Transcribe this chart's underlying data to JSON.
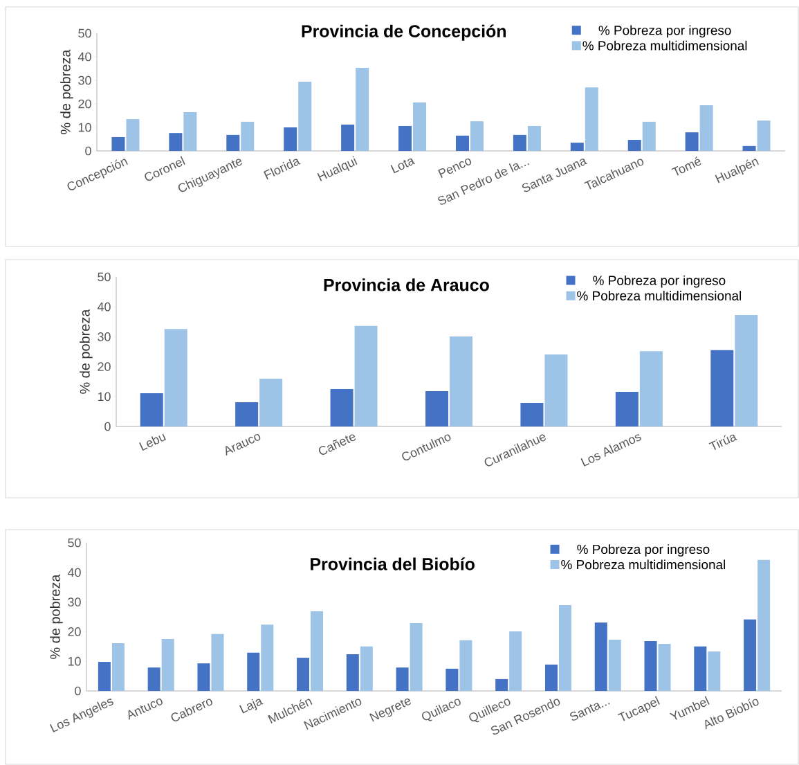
{
  "chart_data": [
    {
      "type": "bar",
      "title": "Provincia de Concepción",
      "ylabel": "% de pobreza",
      "ylim": [
        0,
        50
      ],
      "yticks": [
        0,
        10,
        20,
        30,
        40,
        50
      ],
      "legend": "top right",
      "grid": false,
      "categories": [
        "Concepción",
        "Coronel",
        "Chiguayante",
        "Florida",
        "Hualqui",
        "Lota",
        "Penco",
        "San Pedro de la...",
        "Santa Juana",
        "Talcahuano",
        "Tomé",
        "Hualpén"
      ],
      "series": [
        {
          "name": "% Pobreza por ingreso",
          "color": "#4472c4",
          "values": [
            5.9,
            7.6,
            6.8,
            10,
            11.2,
            10.6,
            6.5,
            6.8,
            3.5,
            4.7,
            7.9,
            2.1
          ]
        },
        {
          "name": "% Pobreza multidimensional",
          "color": "#9dc3e6",
          "values": [
            13.5,
            16.5,
            12.4,
            29.4,
            35.3,
            20.6,
            12.6,
            10.6,
            27,
            12.4,
            19.4,
            12.9
          ]
        }
      ]
    },
    {
      "type": "bar",
      "title": "Provincia de Arauco",
      "ylabel": "% de pobreza",
      "ylim": [
        0,
        50
      ],
      "yticks": [
        0,
        10,
        20,
        30,
        40,
        50
      ],
      "legend": "top right",
      "grid": false,
      "categories": [
        "Lebu",
        "Arauco",
        "Cañete",
        "Contulmo",
        "Curanilahue",
        "Los Alamos",
        "Tirúa"
      ],
      "series": [
        {
          "name": "% Pobreza por ingreso",
          "color": "#4472c4",
          "values": [
            11.1,
            8.1,
            12.5,
            11.8,
            7.9,
            11.6,
            25.5
          ]
        },
        {
          "name": "% Pobreza multidimensional",
          "color": "#9dc3e6",
          "values": [
            32.6,
            16,
            33.6,
            30.1,
            24.1,
            25.2,
            37.3
          ]
        }
      ]
    },
    {
      "type": "bar",
      "title": "Provincia del Biobío",
      "ylabel": "% de pobreza",
      "ylim": [
        0,
        50
      ],
      "yticks": [
        0,
        10,
        20,
        30,
        40,
        50
      ],
      "legend": "top right",
      "grid": false,
      "categories": [
        "Los Angeles",
        "Antuco",
        "Cabrero",
        "Laja",
        "Mulchén",
        "Nacimiento",
        "Negrete",
        "Quilaco",
        "Quilleco",
        "San Rosendo",
        "Santa...",
        "Tucapel",
        "Yumbel",
        "Alto Biobío"
      ],
      "series": [
        {
          "name": "% Pobreza por ingreso",
          "color": "#4472c4",
          "values": [
            9.8,
            7.9,
            9.3,
            12.9,
            11.2,
            12.4,
            7.9,
            7.5,
            4,
            8.9,
            23.1,
            16.8,
            15,
            24.1
          ]
        },
        {
          "name": "% Pobreza multidimensional",
          "color": "#9dc3e6",
          "values": [
            16.1,
            17.5,
            19.2,
            22.4,
            26.9,
            15,
            22.9,
            17.1,
            20.1,
            29,
            17.3,
            15.9,
            13.3,
            44.2
          ]
        }
      ]
    }
  ]
}
